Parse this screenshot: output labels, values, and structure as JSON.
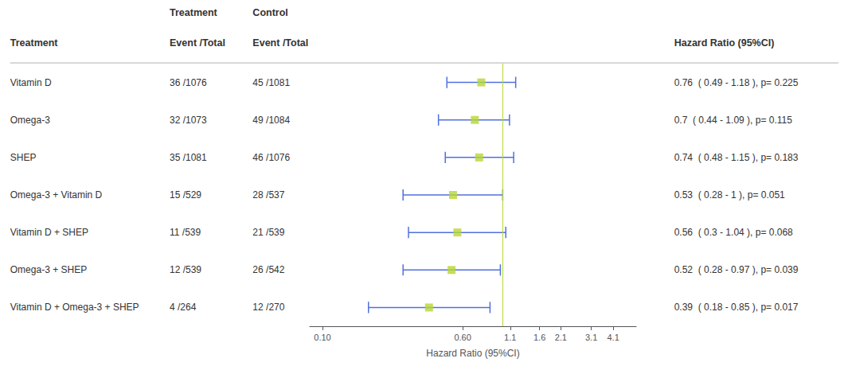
{
  "chart_data": {
    "type": "forest",
    "x_label": "Hazard Ratio (95%CI)",
    "row_label_header": "Treatment",
    "categories": [
      "Vitamin D",
      "Omega-3",
      "SHEP",
      "Omega-3 + Vitamin D",
      "Vitamin D + SHEP",
      "Omega-3 + SHEP",
      "Vitamin D + Omega-3 + SHEP"
    ],
    "values": [
      0.76,
      0.7,
      0.74,
      0.53,
      0.56,
      0.52,
      0.39
    ],
    "ci_lower": [
      0.49,
      0.44,
      0.48,
      0.28,
      0.3,
      0.28,
      0.18
    ],
    "ci_upper": [
      1.18,
      1.09,
      1.15,
      1.0,
      1.04,
      0.97,
      0.85
    ],
    "reference_line": 1,
    "columns": [
      {
        "group": "Treatment",
        "header": "Event /Total",
        "cells": [
          "36 /1076",
          "32 /1073",
          "35 /1081",
          "15 /529",
          "11 /539",
          "12 /539",
          "4 /264"
        ]
      },
      {
        "group": "Control",
        "header": "Event /Total",
        "cells": [
          "45 /1081",
          "49 /1084",
          "46 /1076",
          "28 /537",
          "21 /539",
          "26 /542",
          "12 /270"
        ]
      },
      {
        "header": "Hazard Ratio (95%CI)",
        "cells": [
          "0.76  ( 0.49 - 1.18 ), p= 0.225",
          "0.7  ( 0.44 - 1.09 ), p= 0.115",
          "0.74  ( 0.48 - 1.15 ), p= 0.183",
          "0.53  ( 0.28 - 1 ), p= 0.051",
          "0.56  ( 0.3 - 1.04 ), p= 0.068",
          "0.52  ( 0.28 - 0.97 ), p= 0.039",
          "0.39  ( 0.18 - 0.85 ), p= 0.017"
        ]
      }
    ],
    "log": "x",
    "xlim": [
      0.085,
      5.5
    ],
    "xticks": [
      {
        "value": 0.1,
        "label": "0.10"
      },
      {
        "value": 0.6,
        "label": "0.60"
      },
      1.1,
      1.6,
      2.1,
      3.1,
      4.1
    ],
    "grid": false
  }
}
